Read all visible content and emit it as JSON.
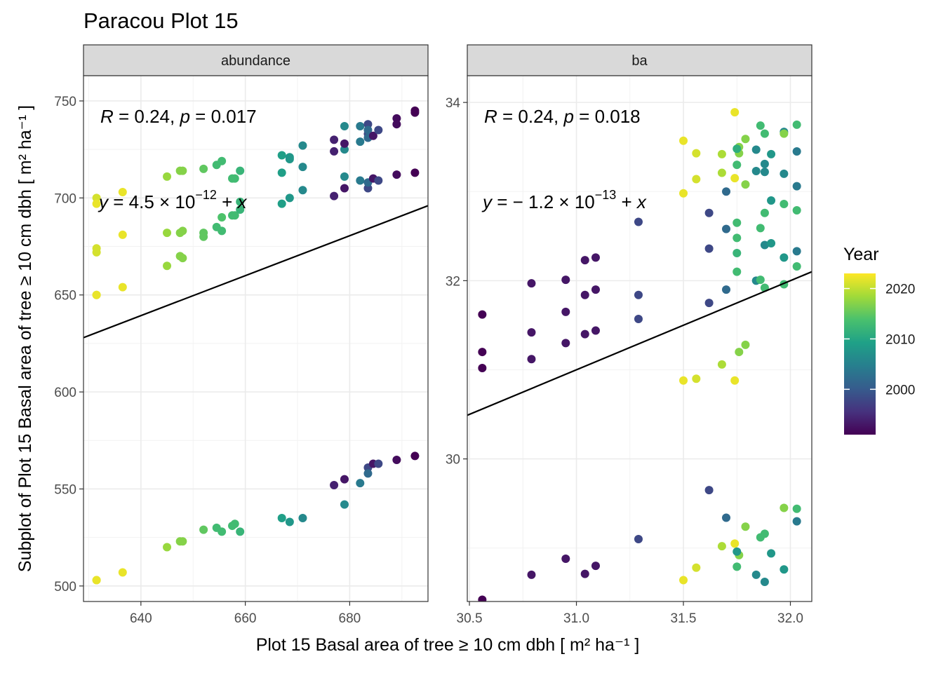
{
  "title": "Paracou Plot 15",
  "xlabel": "Plot 15 Basal area of tree  ≥ 10 cm dbh [ m² ha⁻¹ ]",
  "ylabel": "Subplot of Plot 15 Basal area of tree  ≥ 10 cm dbh [ m² ha⁻¹ ]",
  "legend": {
    "title": "Year",
    "ticks": [
      2020,
      2010,
      2000
    ],
    "range": [
      1991,
      2023
    ],
    "position": "right"
  },
  "colors": {
    "viridis": [
      "#440154",
      "#46327e",
      "#365c8d",
      "#277f8e",
      "#1fa187",
      "#4ac16d",
      "#a0da39",
      "#fde725"
    ],
    "line": "#000000",
    "strip_bg": "#d9d9d9",
    "panel_border": "#333333",
    "grid": "#ebebeb"
  },
  "chart_data": [
    {
      "type": "scatter",
      "panel": "abundance",
      "strip_label": "abundance",
      "xlim": [
        629,
        695
      ],
      "ylim": [
        492,
        763
      ],
      "xticks": [
        640,
        660,
        680
      ],
      "yticks": [
        500,
        550,
        600,
        650,
        700,
        750
      ],
      "annotation_r": {
        "r_label": "R",
        "r_rest": " = 0.24, ",
        "p_label": "p",
        "p_rest": " = 0.017"
      },
      "annotation_eq": {
        "y_label": "y",
        "eq_main": " = 4.5 × 10",
        "eq_exp": "−12",
        "eq_plus": " +  ",
        "x_label": "x"
      },
      "fit_line": {
        "x": [
          629,
          695
        ],
        "y": [
          628,
          696
        ]
      },
      "points": [
        [
          631.5,
          700,
          2021
        ],
        [
          631.5,
          697,
          2022
        ],
        [
          631.5,
          674,
          2021
        ],
        [
          631.5,
          672,
          2021
        ],
        [
          631.5,
          650,
          2021
        ],
        [
          631.5,
          650,
          2022
        ],
        [
          631.5,
          503,
          2021
        ],
        [
          631.5,
          503,
          2022
        ],
        [
          636.5,
          703,
          2022
        ],
        [
          636.5,
          681,
          2022
        ],
        [
          636.5,
          654,
          2022
        ],
        [
          636.5,
          507,
          2022
        ],
        [
          645,
          711,
          2018
        ],
        [
          645,
          682,
          2018
        ],
        [
          645,
          665,
          2018
        ],
        [
          645,
          520,
          2018
        ],
        [
          647.5,
          714,
          2017
        ],
        [
          648,
          714,
          2017
        ],
        [
          647.5,
          682,
          2017
        ],
        [
          648,
          683,
          2017
        ],
        [
          647.5,
          670,
          2017
        ],
        [
          648,
          669,
          2017
        ],
        [
          647.5,
          523,
          2017
        ],
        [
          648,
          523,
          2017
        ],
        [
          652,
          715,
          2015
        ],
        [
          652,
          682,
          2015
        ],
        [
          652,
          680,
          2015
        ],
        [
          652,
          529,
          2015
        ],
        [
          654.5,
          717,
          2013
        ],
        [
          655.5,
          719,
          2013
        ],
        [
          654.5,
          685,
          2013
        ],
        [
          655.5,
          683,
          2013
        ],
        [
          655.5,
          690,
          2014
        ],
        [
          654.5,
          530,
          2013
        ],
        [
          655.5,
          528,
          2013
        ],
        [
          657.5,
          710,
          2013
        ],
        [
          658,
          710,
          2013
        ],
        [
          659,
          714,
          2012
        ],
        [
          657.5,
          691,
          2013
        ],
        [
          658,
          691,
          2013
        ],
        [
          659,
          698,
          2012
        ],
        [
          659,
          694,
          2012
        ],
        [
          657.5,
          531,
          2013
        ],
        [
          658,
          532,
          2013
        ],
        [
          659,
          528,
          2012
        ],
        [
          667,
          722,
          2009
        ],
        [
          667,
          713,
          2009
        ],
        [
          667,
          697,
          2009
        ],
        [
          667,
          535,
          2009
        ],
        [
          668.5,
          720,
          2008
        ],
        [
          668.5,
          721,
          2008
        ],
        [
          668.5,
          700,
          2008
        ],
        [
          668.5,
          533,
          2008
        ],
        [
          671,
          727,
          2006
        ],
        [
          671,
          716,
          2006
        ],
        [
          671,
          704,
          2006
        ],
        [
          671,
          535,
          2006
        ],
        [
          677,
          730,
          1994
        ],
        [
          677,
          724,
          1994
        ],
        [
          677,
          701,
          1994
        ],
        [
          677,
          552,
          1994
        ],
        [
          679,
          737,
          2006
        ],
        [
          679,
          711,
          2006
        ],
        [
          679,
          725,
          2006
        ],
        [
          679,
          542,
          2006
        ],
        [
          679,
          728,
          1993
        ],
        [
          679,
          705,
          1993
        ],
        [
          679,
          555,
          1993
        ],
        [
          682,
          737,
          2004
        ],
        [
          682,
          729,
          2004
        ],
        [
          682,
          709,
          2004
        ],
        [
          682,
          553,
          2004
        ],
        [
          683.5,
          738,
          1998
        ],
        [
          683.5,
          733,
          1998
        ],
        [
          683.5,
          731,
          2002
        ],
        [
          683.5,
          735,
          2002
        ],
        [
          683.5,
          705,
          1998
        ],
        [
          683.5,
          708,
          2002
        ],
        [
          683.5,
          561,
          1998
        ],
        [
          683.5,
          558,
          2002
        ],
        [
          684.5,
          732,
          1993
        ],
        [
          684.5,
          710,
          1993
        ],
        [
          684.5,
          563,
          1993
        ],
        [
          685.5,
          735,
          1998
        ],
        [
          685.5,
          709,
          1998
        ],
        [
          685.5,
          563,
          1998
        ],
        [
          689,
          741,
          1992
        ],
        [
          689,
          738,
          1992
        ],
        [
          689,
          712,
          1992
        ],
        [
          689,
          565,
          1992
        ],
        [
          692.5,
          745,
          1991
        ],
        [
          692.5,
          744,
          1991
        ],
        [
          692.5,
          713,
          1991
        ],
        [
          692.5,
          567,
          1991
        ]
      ]
    },
    {
      "type": "scatter",
      "panel": "ba",
      "strip_label": "ba",
      "xlim": [
        30.49,
        32.1
      ],
      "ylim": [
        28.4,
        34.3
      ],
      "xticks": [
        30.5,
        31.0,
        31.5,
        32.0
      ],
      "xtick_labels": [
        "30.5",
        "31.0",
        "31.5",
        "32.0"
      ],
      "yticks": [
        30,
        32,
        34
      ],
      "annotation_r": {
        "r_label": "R",
        "r_rest": " = 0.24, ",
        "p_label": "p",
        "p_rest": " = 0.018"
      },
      "annotation_eq": {
        "y_label": "y",
        "eq_main": " = − 1.2 × 10",
        "eq_exp": "−13",
        "eq_plus": " +  ",
        "x_label": "x"
      },
      "fit_line": {
        "x": [
          30.49,
          32.1
        ],
        "y": [
          30.49,
          32.1
        ]
      },
      "points": [
        [
          30.56,
          31.62,
          1991
        ],
        [
          30.56,
          31.2,
          1991
        ],
        [
          30.56,
          31.02,
          1991
        ],
        [
          30.56,
          28.42,
          1991
        ],
        [
          30.79,
          31.97,
          1993
        ],
        [
          30.79,
          31.42,
          1993
        ],
        [
          30.79,
          31.12,
          1993
        ],
        [
          30.79,
          28.7,
          1993
        ],
        [
          30.95,
          32.01,
          1993
        ],
        [
          30.95,
          31.65,
          1993
        ],
        [
          30.95,
          31.3,
          1993
        ],
        [
          30.95,
          28.88,
          1993
        ],
        [
          31.04,
          32.23,
          1993
        ],
        [
          31.04,
          31.84,
          1993
        ],
        [
          31.04,
          31.4,
          1993
        ],
        [
          31.04,
          28.71,
          1993
        ],
        [
          31.09,
          32.26,
          1993
        ],
        [
          31.09,
          31.9,
          1993
        ],
        [
          31.09,
          31.44,
          1993
        ],
        [
          31.09,
          28.8,
          1993
        ],
        [
          31.29,
          32.66,
          1998
        ],
        [
          31.29,
          31.84,
          1998
        ],
        [
          31.29,
          31.57,
          1998
        ],
        [
          31.29,
          29.1,
          1998
        ],
        [
          31.5,
          33.57,
          2022
        ],
        [
          31.5,
          32.98,
          2022
        ],
        [
          31.5,
          30.88,
          2022
        ],
        [
          31.5,
          28.64,
          2022
        ],
        [
          31.56,
          33.43,
          2021
        ],
        [
          31.56,
          33.14,
          2021
        ],
        [
          31.56,
          30.9,
          2021
        ],
        [
          31.56,
          28.78,
          2021
        ],
        [
          31.62,
          32.76,
          1998
        ],
        [
          31.62,
          32.36,
          1998
        ],
        [
          31.62,
          31.75,
          1998
        ],
        [
          31.62,
          29.65,
          1998
        ],
        [
          31.68,
          33.42,
          2019
        ],
        [
          31.68,
          33.21,
          2019
        ],
        [
          31.68,
          31.06,
          2019
        ],
        [
          31.68,
          29.02,
          2019
        ],
        [
          31.7,
          33,
          2002
        ],
        [
          31.7,
          32.58,
          2002
        ],
        [
          31.7,
          31.9,
          2002
        ],
        [
          31.7,
          29.34,
          2002
        ],
        [
          31.74,
          33.89,
          2022
        ],
        [
          31.74,
          33.15,
          2022
        ],
        [
          31.74,
          30.88,
          2022
        ],
        [
          31.74,
          29.05,
          2022
        ],
        [
          31.76,
          33.5,
          2017
        ],
        [
          31.76,
          33.43,
          2017
        ],
        [
          31.76,
          31.2,
          2017
        ],
        [
          31.76,
          28.92,
          2017
        ],
        [
          31.75,
          33.48,
          2011
        ],
        [
          31.75,
          33.3,
          2013
        ],
        [
          31.75,
          32.65,
          2013
        ],
        [
          31.75,
          32.48,
          2013
        ],
        [
          31.75,
          32.31,
          2012
        ],
        [
          31.75,
          32.1,
          2013
        ],
        [
          31.75,
          28.96,
          2008
        ],
        [
          31.75,
          28.79,
          2013
        ],
        [
          31.79,
          33.59,
          2017
        ],
        [
          31.79,
          33.08,
          2017
        ],
        [
          31.79,
          31.28,
          2017
        ],
        [
          31.79,
          29.24,
          2017
        ],
        [
          31.84,
          33.47,
          2006
        ],
        [
          31.84,
          33.23,
          2006
        ],
        [
          31.84,
          32,
          2006
        ],
        [
          31.84,
          28.7,
          2006
        ],
        [
          31.86,
          33.74,
          2013
        ],
        [
          31.86,
          32.59,
          2013
        ],
        [
          31.86,
          32.01,
          2013
        ],
        [
          31.86,
          29.12,
          2013
        ],
        [
          31.88,
          33.65,
          2013
        ],
        [
          31.88,
          33.31,
          2006
        ],
        [
          31.88,
          33.22,
          2006
        ],
        [
          31.88,
          32.4,
          2006
        ],
        [
          31.88,
          32.76,
          2013
        ],
        [
          31.88,
          31.92,
          2013
        ],
        [
          31.88,
          28.62,
          2006
        ],
        [
          31.88,
          29.16,
          2013
        ],
        [
          31.91,
          33.42,
          2008
        ],
        [
          31.91,
          32.9,
          2008
        ],
        [
          31.91,
          32.42,
          2008
        ],
        [
          31.91,
          28.94,
          2008
        ],
        [
          31.97,
          33.67,
          2006
        ],
        [
          31.97,
          33.65,
          2017
        ],
        [
          31.97,
          33.2,
          2006
        ],
        [
          31.97,
          32.86,
          2013
        ],
        [
          31.97,
          32.26,
          2008
        ],
        [
          31.97,
          31.96,
          2013
        ],
        [
          31.97,
          29.45,
          2017
        ],
        [
          31.97,
          28.76,
          2008
        ],
        [
          32.03,
          33.75,
          2013
        ],
        [
          32.03,
          33.45,
          2004
        ],
        [
          32.03,
          33.06,
          2004
        ],
        [
          32.03,
          32.79,
          2013
        ],
        [
          32.03,
          32.33,
          2004
        ],
        [
          32.03,
          32.16,
          2013
        ],
        [
          32.03,
          29.44,
          2013
        ],
        [
          32.03,
          29.3,
          2004
        ]
      ]
    }
  ]
}
